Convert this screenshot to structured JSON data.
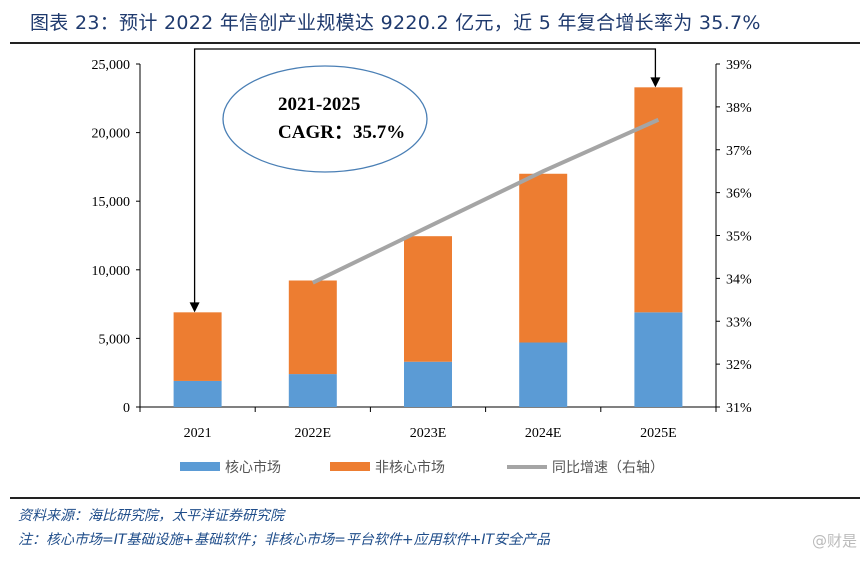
{
  "title": "图表 23：预计 2022 年信创产业规模达 9220.2 亿元，近 5 年复合增长率为 35.7%",
  "chart_data": {
    "type": "bar",
    "stacked": true,
    "categories": [
      "2021",
      "2022E",
      "2023E",
      "2024E",
      "2025E"
    ],
    "series": [
      {
        "name": "核心市场",
        "type": "bar",
        "axis": "left",
        "color": "#5b9bd5",
        "values": [
          1900,
          2400,
          3300,
          4700,
          6900
        ]
      },
      {
        "name": "非核心市场",
        "type": "bar",
        "axis": "left",
        "color": "#ed7d31",
        "values": [
          5000,
          6820,
          9150,
          12300,
          16400
        ]
      },
      {
        "name": "同比增速（右轴）",
        "type": "line",
        "axis": "right",
        "color": "#a5a5a5",
        "values": [
          null,
          33.9,
          35.2,
          36.5,
          37.7
        ]
      }
    ],
    "ylim": [
      0,
      25000
    ],
    "yticks": [
      "0",
      "5,000",
      "10,000",
      "15,000",
      "20,000",
      "25,000"
    ],
    "y2lim": [
      31,
      39
    ],
    "y2ticks": [
      "31%",
      "32%",
      "33%",
      "34%",
      "35%",
      "36%",
      "37%",
      "38%",
      "39%"
    ],
    "legend_position": "bottom",
    "grid": false,
    "annotation": {
      "line1": "2021-2025",
      "line2": "CAGR：35.7%"
    }
  },
  "footer": {
    "source": "资料来源：海比研究院，太平洋证券研究院",
    "note": "注：核心市场=IT基础设施+基础软件；非核心市场=平台软件+应用软件+IT安全产品"
  },
  "watermark": "@财是"
}
